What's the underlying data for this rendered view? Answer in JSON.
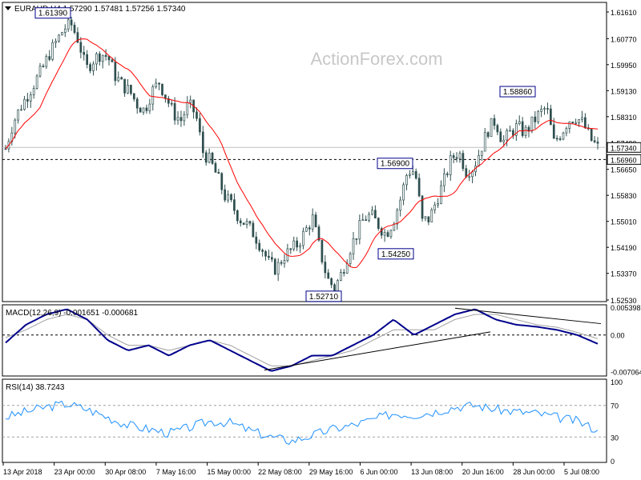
{
  "header": {
    "symbol_line": "EURAUD,H4  1.57290 1.57481 1.57256 1.57340",
    "watermark": "ActionForex.com"
  },
  "chart_data": [
    {
      "type": "candlestick",
      "title": "EURAUD,H4  1.57290 1.57481 1.57256 1.57340",
      "ylim": [
        1.5253,
        1.6161
      ],
      "y_ticks": [
        "1.61610",
        "1.60770",
        "1.59950",
        "1.59130",
        "1.58310",
        "1.57490",
        "1.56650",
        "1.55830",
        "1.55010",
        "1.54190",
        "1.53370",
        "1.52530"
      ],
      "current_price": "1.57340",
      "horizontal_line": "1.56960",
      "annotations": [
        "1.61390",
        "1.58860",
        "1.56900",
        "1.54250",
        "1.52710"
      ],
      "annotation_values": [
        1.6139,
        1.5886,
        1.569,
        1.5425,
        1.5271
      ],
      "price_path": [
        1.573,
        1.581,
        1.586,
        1.59,
        1.594,
        1.598,
        1.603,
        1.607,
        1.611,
        1.612,
        1.607,
        1.598,
        1.601,
        1.603,
        1.602,
        1.596,
        1.593,
        1.591,
        1.587,
        1.585,
        1.591,
        1.594,
        1.589,
        1.584,
        1.582,
        1.587,
        1.584,
        1.572,
        1.569,
        1.564,
        1.558,
        1.555,
        1.551,
        1.549,
        1.546,
        1.542,
        1.537,
        1.535,
        1.539,
        1.541,
        1.543,
        1.547,
        1.551,
        1.541,
        1.532,
        1.529,
        1.534,
        1.541,
        1.546,
        1.551,
        1.552,
        1.549,
        1.546,
        1.55,
        1.557,
        1.566,
        1.566,
        1.55,
        1.551,
        1.557,
        1.563,
        1.57,
        1.572,
        1.566,
        1.567,
        1.573,
        1.579,
        1.582,
        1.575,
        1.578,
        1.58,
        1.578,
        1.581,
        1.584,
        1.586,
        1.575,
        1.578,
        1.582,
        1.583,
        1.581,
        1.576,
        1.5734
      ],
      "moving_average": "red"
    },
    {
      "type": "line",
      "title": "MACD(12,26,9) -0.001651 -0.000681",
      "ylim": [
        -0.00764,
        0.00539
      ],
      "y_ticks": [
        "0.005398",
        "0.00",
        "-0.007064"
      ],
      "series": [
        {
          "name": "MACD",
          "values": [
            -0.0015,
            0.002,
            0.004,
            0.005,
            0.003,
            -0.001,
            -0.003,
            -0.002,
            -0.004,
            -0.002,
            -0.001,
            -0.003,
            -0.005,
            -0.007,
            -0.006,
            -0.004,
            -0.004,
            -0.002,
            0.0,
            0.003,
            0.0,
            0.002,
            0.004,
            0.005,
            0.003,
            0.002,
            0.0016,
            0.001,
            0.0,
            -0.0017
          ],
          "color": "#00008b"
        },
        {
          "name": "Signal",
          "values": [
            -0.0005,
            0.001,
            0.003,
            0.004,
            0.003,
            0.0,
            -0.002,
            -0.002,
            -0.003,
            -0.002,
            -0.001,
            -0.002,
            -0.004,
            -0.006,
            -0.006,
            -0.005,
            -0.004,
            -0.003,
            -0.001,
            0.001,
            0.001,
            0.001,
            0.003,
            0.004,
            0.004,
            0.003,
            0.002,
            0.0015,
            0.0005,
            -0.0007
          ],
          "color": "#a0a0a0"
        }
      ]
    },
    {
      "type": "line",
      "title": "RSI(14) 38.7243",
      "ylim": [
        0,
        100
      ],
      "y_ticks": [
        "100",
        "70",
        "30",
        "0"
      ],
      "series": [
        {
          "name": "RSI",
          "values": [
            55,
            62,
            68,
            72,
            65,
            55,
            45,
            40,
            35,
            42,
            50,
            48,
            38,
            30,
            25,
            32,
            40,
            45,
            52,
            60,
            58,
            62,
            68,
            70,
            65,
            62,
            60,
            55,
            50,
            38.7
          ],
          "color": "#1e90ff"
        }
      ]
    }
  ],
  "x_axis_labels": [
    "13 Apr 2018",
    "23 Apr 00:00",
    "30 Apr 08:00",
    "7 May 16:00",
    "15 May 00:00",
    "22 May 08:00",
    "29 May 16:00",
    "6 Jun 00:00",
    "13 Jun 08:00",
    "20 Jun 16:00",
    "28 Jun 00:00",
    "5 Jul 08:00"
  ],
  "colors": {
    "candle": "#2f4f4f",
    "ma": "#ff0000",
    "macd": "#00008b",
    "signal": "#a0a0a0",
    "rsi": "#1e90ff",
    "trendline": "#000000"
  }
}
